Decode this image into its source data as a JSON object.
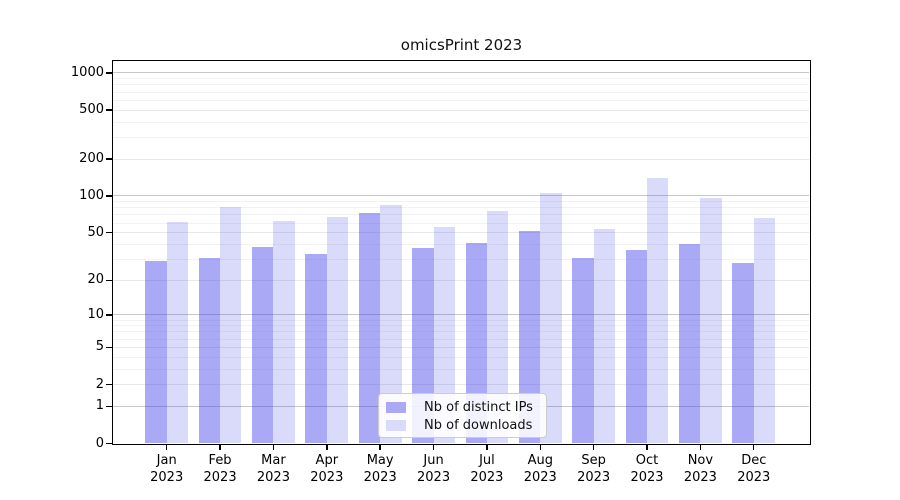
{
  "title": "omicsPrint 2023",
  "chart_data": {
    "type": "bar",
    "title": "omicsPrint 2023",
    "categories": [
      "Jan 2023",
      "Feb 2023",
      "Mar 2023",
      "Apr 2023",
      "May 2023",
      "Jun 2023",
      "Jul 2023",
      "Aug 2023",
      "Sep 2023",
      "Oct 2023",
      "Nov 2023",
      "Dec 2023"
    ],
    "series": [
      {
        "name": "Nb of distinct IPs",
        "color": "#a9a9f4",
        "values": [
          29,
          31,
          38,
          33,
          72,
          37,
          41,
          52,
          31,
          36,
          40,
          28
        ]
      },
      {
        "name": "Nb of downloads",
        "color": "#dadafb",
        "values": [
          61,
          81,
          62,
          67,
          84,
          56,
          75,
          105,
          54,
          140,
          97,
          66
        ]
      }
    ],
    "y_scale": "log1p",
    "y_ticks_labeled": [
      0,
      1,
      2,
      5,
      10,
      20,
      50,
      100,
      200,
      500,
      1000
    ],
    "y_ticks_minor": [
      3,
      4,
      6,
      7,
      8,
      9,
      30,
      40,
      60,
      70,
      80,
      90,
      300,
      400,
      600,
      700,
      800,
      900
    ],
    "ylim": [
      0,
      1250
    ],
    "xlabel": "",
    "ylabel": "",
    "grid": true,
    "legend_position": "lower center"
  },
  "legend": {
    "items": [
      {
        "label": "Nb of distinct IPs",
        "swatch": "#a9a9f4"
      },
      {
        "label": "Nb of downloads",
        "swatch": "#dadafb"
      }
    ]
  },
  "colors": {
    "bar_ips_fill": "rgba(60,60,235,0.44)",
    "bar_downloads_fill": "rgba(60,60,235,0.19)",
    "bar_ips_hex": "#a9a9f4",
    "bar_downloads_hex": "#dadafb",
    "grid_power": "#c8c8c8",
    "grid_labeled": "#e8e8e8",
    "grid_minor": "#f2f2f2",
    "spine": "#000000",
    "legend_border": "#cccccc",
    "text": "#000000"
  }
}
